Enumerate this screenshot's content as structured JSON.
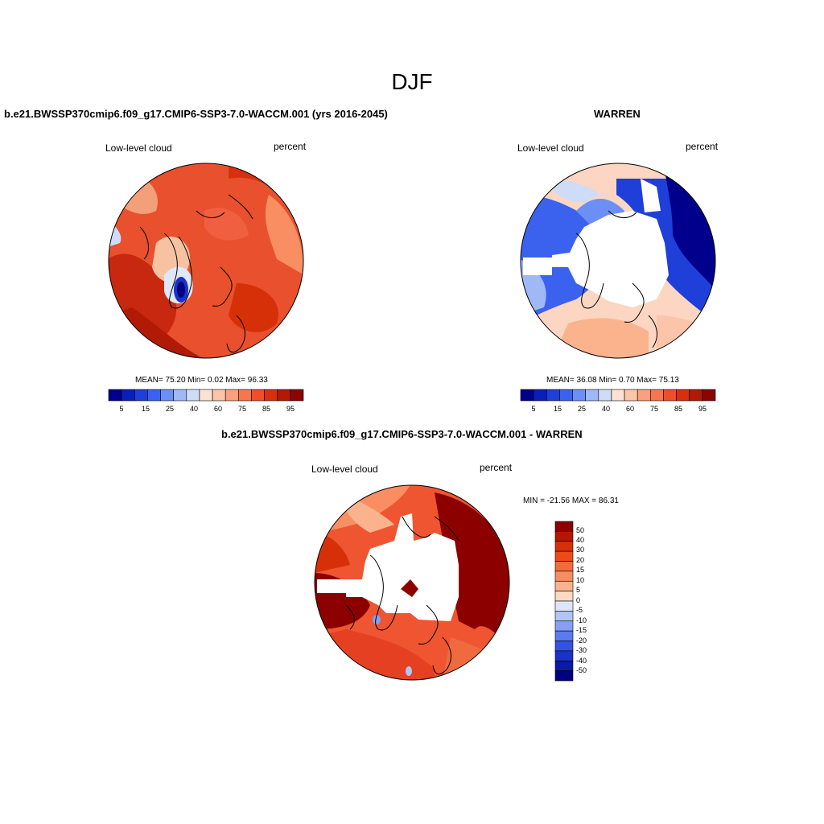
{
  "title": "DJF",
  "panels": [
    {
      "case": "b.e21.BWSSP370cmip6.f09_g17.CMIP6-SSP3-7.0-WACCM.001 (yrs 2016-2045)",
      "variable": "Low-level cloud",
      "units": "percent",
      "stats": "MEAN=  75.20  Min=   0.02  Max=  96.33",
      "dominant_color": "#e8482a"
    },
    {
      "case": "WARREN",
      "variable": "Low-level cloud",
      "units": "percent",
      "stats": "MEAN=  36.08  Min=   0.70  Max=  75.13",
      "dominant_color": "#3b5ce0"
    },
    {
      "case": "b.e21.BWSSP370cmip6.f09_g17.CMIP6-SSP3-7.0-WACCM.001 - WARREN",
      "variable": "Low-level cloud",
      "units": "percent",
      "stats": "MIN = -21.56 MAX =  86.31",
      "dominant_color": "#c8280f"
    }
  ],
  "colorbar_horizontal": {
    "colors": [
      "#00008c",
      "#0a1fb8",
      "#1e3fd8",
      "#3b62ee",
      "#6b8ff4",
      "#9fb8f6",
      "#cfdcf8",
      "#fde2d4",
      "#fcc4a8",
      "#f9a07c",
      "#f67650",
      "#ee4e2a",
      "#d8300f",
      "#b01a06",
      "#8a0500"
    ],
    "tick_labels": [
      "5",
      "15",
      "25",
      "40",
      "60",
      "75",
      "85",
      "95"
    ]
  },
  "colorbar_vertical": {
    "colors": [
      "#8c0000",
      "#b41600",
      "#d63008",
      "#ee4a18",
      "#f56a3a",
      "#f88e62",
      "#fbb38e",
      "#fdd9c2",
      "#dde6f8",
      "#b2c6f6",
      "#859ff2",
      "#5b7bee",
      "#3453e4",
      "#1a32c8",
      "#0a1aa6",
      "#000080"
    ],
    "tick_labels": [
      "50",
      "40",
      "30",
      "20",
      "15",
      "10",
      "5",
      "0",
      "-5",
      "-10",
      "-15",
      "-20",
      "-30",
      "-40",
      "-50"
    ]
  }
}
